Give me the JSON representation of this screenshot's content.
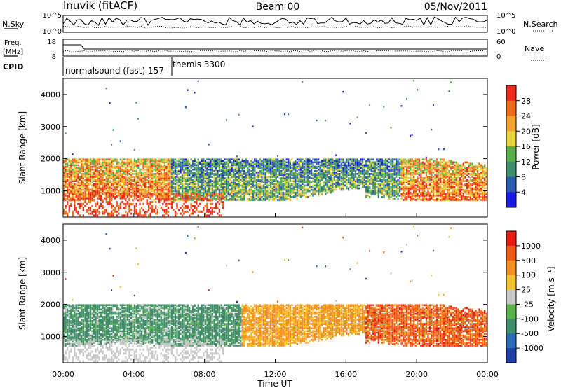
{
  "header": {
    "station": "Inuvik (fitACF)",
    "beam": "Beam 00",
    "date": "05/Nov/2011"
  },
  "noise_panel": {
    "left_label": "N.Sky",
    "right_label": "N.Search",
    "left_ticks": [
      "10^5",
      "10^0"
    ],
    "right_ticks": [
      "10^5",
      "10^0"
    ]
  },
  "freq_panel": {
    "left_label_1": "Freq.",
    "left_label_2": "[MHz]",
    "right_label": "Nave",
    "left_ticks": [
      "18",
      "8"
    ],
    "right_ticks": [
      "60",
      "0"
    ]
  },
  "cpid": {
    "label": "CPID",
    "modes": [
      "normalsound (fast) 157",
      "themis 3300"
    ]
  },
  "axes": {
    "ylabel": "Slant Range [km]",
    "xlabel": "Time UT",
    "yticks": [
      "1000",
      "2000",
      "3000",
      "4000"
    ],
    "xticks": [
      "00:00",
      "04:00",
      "08:00",
      "12:00",
      "16:00",
      "20:00",
      "00:00"
    ]
  },
  "power_scale": {
    "title": "Power [dB]",
    "ticks": [
      "4",
      "8",
      "12",
      "16",
      "20",
      "24",
      "28"
    ],
    "colors": [
      "#1a1ae8",
      "#2a5cb0",
      "#3e8f6a",
      "#58b04a",
      "#e6d43a",
      "#f5a22a",
      "#f06a1a",
      "#ee2a1a"
    ]
  },
  "velocity_scale": {
    "title": "Velocity [m s⁻¹]",
    "ticks": [
      "1000",
      "500",
      "100",
      "25",
      "-25",
      "-100",
      "-500",
      "-1000"
    ],
    "colors": [
      "#1f3fa8",
      "#2a6cb8",
      "#3f8f6a",
      "#5ab44a",
      "#c8c8c8",
      "#f2c22a",
      "#f5901e",
      "#ef5a14",
      "#e81c12"
    ]
  },
  "chart_data": {
    "type": "heatmap",
    "x_range_hours": [
      0,
      24
    ],
    "y_range_km": [
      180,
      4500
    ],
    "scatter_bands": [
      {
        "name": "main",
        "time_hours": [
          0,
          24
        ],
        "range_km": [
          700,
          2000
        ]
      },
      {
        "name": "ground",
        "time_hours": [
          0,
          9
        ],
        "range_km": [
          200,
          900
        ]
      },
      {
        "name": "sporadic",
        "time_hours": [
          0,
          24
        ],
        "range_km": [
          2000,
          4500
        ]
      }
    ]
  }
}
